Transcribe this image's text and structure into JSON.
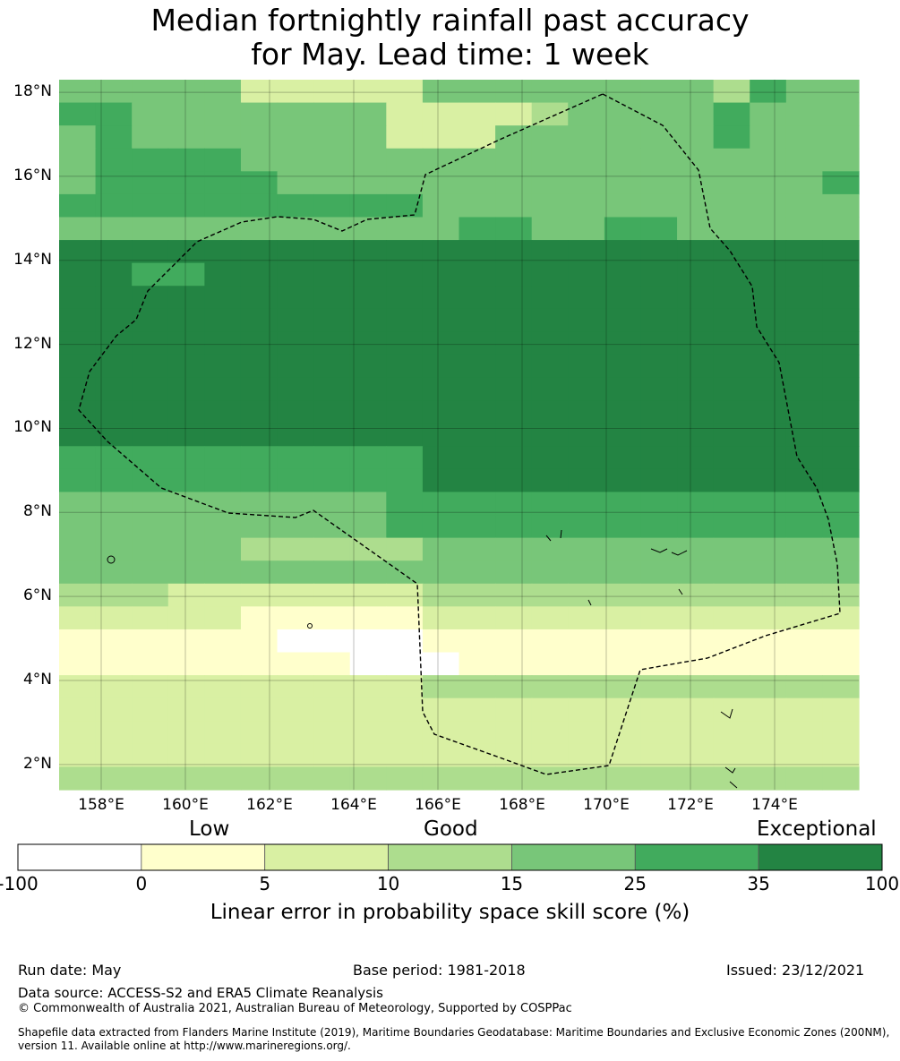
{
  "title": {
    "line1": "Median fortnightly rainfall past accuracy",
    "line2": "for May. Lead time: 1 week"
  },
  "map": {
    "lat_labels": [
      "18°N",
      "16°N",
      "14°N",
      "12°N",
      "10°N",
      "8°N",
      "6°N",
      "4°N",
      "2°N"
    ],
    "lon_labels": [
      "158°E",
      "160°E",
      "162°E",
      "164°E",
      "166°E",
      "168°E",
      "170°E",
      "172°E",
      "174°E"
    ],
    "lat_values": [
      18,
      16,
      14,
      12,
      10,
      8,
      6,
      4,
      2
    ],
    "lon_values": [
      158,
      160,
      162,
      164,
      166,
      168,
      170,
      172,
      174
    ],
    "lon_range": [
      157,
      176
    ],
    "lat_range": [
      1.4,
      18.3
    ],
    "grid": true,
    "boundary_line": "dashed black",
    "skill_rows_north_to_south": [
      "4444422222444444443544",
      "5544444442222344445444",
      "4544444442224444445444",
      "4555544444444444444444",
      "4555554444444444444445",
      "5555555555444444444444",
      "4444444444455445544444",
      "6666666666666666666666",
      "6655666666666666666666",
      "6666666666666666666666",
      "6666666666666666666666",
      "6666666666666666666666",
      "6666666666666666666666",
      "6666666666666666666666",
      "6666666666666666666666",
      "6666666666666666666666",
      "5555555555666666666666",
      "5555555555666666666666",
      "4444444445555555555555",
      "4444444445555555555555",
      "4444433333444444444444",
      "4444444444444444444444",
      "3332222222333333333333",
      "2222211111222222222222",
      "1111110000111111111111",
      "1111111100011111111111",
      "2222222222333333333333",
      "2222222222222222222222",
      "2222222222222222222222",
      "2222222222222222222222",
      "3333333333333333333333"
    ]
  },
  "legend": {
    "words": [
      "Low",
      "Good",
      "Exceptional"
    ],
    "ticks": [
      "-100",
      "0",
      "5",
      "10",
      "15",
      "25",
      "35",
      "100"
    ],
    "colors": [
      "#ffffff",
      "#ffffcc",
      "#d9f0a3",
      "#addd8e",
      "#78c679",
      "#41ab5d",
      "#238443"
    ],
    "title": "Linear error in probability space skill score (%)"
  },
  "footer": {
    "run_date": "Run date: May",
    "base_period": "Base period: 1981-2018",
    "issued": "Issued: 23/12/2021",
    "data_source": "Data source: ACCESS-S2 and ERA5 Climate Reanalysis",
    "copyright": "© Commonwealth of Australia 2021, Australian Bureau of Meteorology, Supported by COSPPac",
    "shapefile": "Shapefile data extracted from Flanders Marine Institute (2019), Maritime Boundaries Geodatabase: Maritime Boundaries and Exclusive Economic Zones (200NM), version 11. Available online at http://www.marineregions.org/."
  }
}
